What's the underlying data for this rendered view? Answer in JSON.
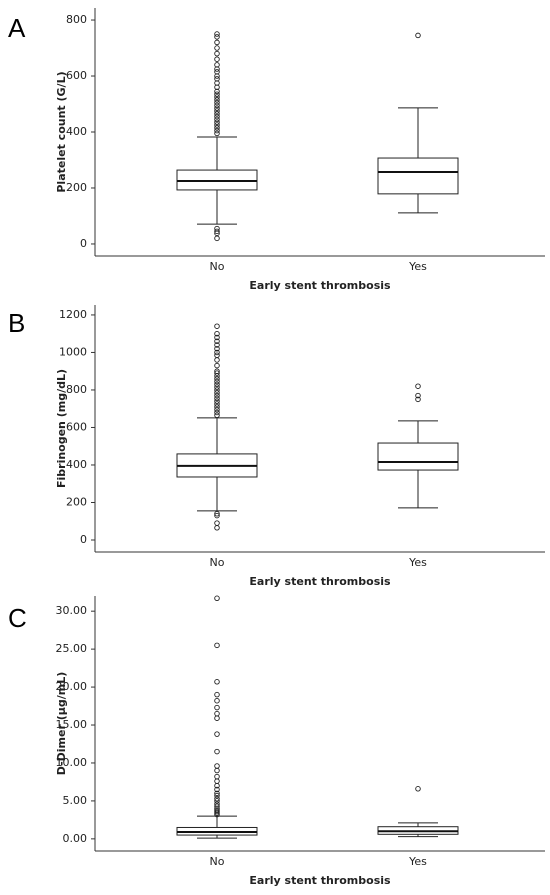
{
  "chart_data": [
    {
      "type": "box",
      "panel_label": "A",
      "y_label": "Platelet count (G/L)",
      "x_label": "Early stent thrombosis",
      "categories": [
        "No",
        "Yes"
      ],
      "ylim": [
        -43,
        843
      ],
      "yticks": [
        0,
        200,
        400,
        600,
        800
      ],
      "boxes": [
        {
          "whisker_low": 71,
          "q1": 193,
          "median": 225,
          "q3": 264,
          "whisker_high": 382,
          "outliers": [
            395,
            405,
            415,
            425,
            435,
            445,
            455,
            465,
            475,
            485,
            495,
            505,
            515,
            525,
            535,
            545,
            560,
            575,
            590,
            600,
            615,
            625,
            640,
            660,
            680,
            700,
            720,
            740,
            750,
            55,
            45,
            38,
            20
          ]
        },
        {
          "whisker_low": 111,
          "q1": 179,
          "median": 257,
          "q3": 307,
          "whisker_high": 486,
          "outliers": [
            745
          ]
        }
      ]
    },
    {
      "type": "box",
      "panel_label": "B",
      "y_label": "Fibrinogen (mg/dL)",
      "x_label": "Early stent thrombosis",
      "categories": [
        "No",
        "Yes"
      ],
      "ylim": [
        -64,
        1253
      ],
      "yticks": [
        0,
        200,
        400,
        600,
        800,
        1000,
        1200
      ],
      "boxes": [
        {
          "whisker_low": 155,
          "q1": 336,
          "median": 395,
          "q3": 459,
          "whisker_high": 651,
          "outliers": [
            665,
            680,
            695,
            710,
            725,
            740,
            755,
            770,
            785,
            800,
            815,
            830,
            845,
            860,
            875,
            890,
            900,
            930,
            960,
            985,
            1000,
            1020,
            1040,
            1060,
            1080,
            1100,
            1140,
            140,
            130,
            90,
            65
          ]
        },
        {
          "whisker_low": 171,
          "q1": 373,
          "median": 416,
          "q3": 517,
          "whisker_high": 635,
          "outliers": [
            820,
            770,
            750
          ]
        }
      ]
    },
    {
      "type": "box",
      "panel_label": "C",
      "y_label": "D-Dimer (μg/mL)",
      "x_label": "Early stent thrombosis",
      "categories": [
        "No",
        "Yes"
      ],
      "ylim": [
        -1.6,
        32
      ],
      "yticks": [
        {
          "value": 0,
          "label": "0.00"
        },
        {
          "value": 5,
          "label": "5.00"
        },
        {
          "value": 10,
          "label": "10.00"
        },
        {
          "value": 15,
          "label": "15.00"
        },
        {
          "value": 20,
          "label": "20.00"
        },
        {
          "value": 25,
          "label": "25.00"
        },
        {
          "value": 30,
          "label": "30.00"
        }
      ],
      "boxes": [
        {
          "whisker_low": 0.1,
          "q1": 0.5,
          "median": 0.9,
          "q3": 1.5,
          "whisker_high": 3.0,
          "outliers": [
            3.2,
            3.4,
            3.6,
            3.8,
            4.0,
            4.3,
            4.6,
            5.0,
            5.3,
            5.7,
            6.0,
            6.5,
            7.0,
            7.6,
            8.2,
            9.0,
            9.6,
            11.5,
            13.8,
            15.9,
            16.5,
            17.3,
            18.2,
            19.0,
            20.7,
            25.5,
            31.7
          ]
        },
        {
          "whisker_low": 0.3,
          "q1": 0.6,
          "median": 1.0,
          "q3": 1.6,
          "whisker_high": 2.1,
          "outliers": [
            6.6
          ]
        }
      ]
    }
  ]
}
